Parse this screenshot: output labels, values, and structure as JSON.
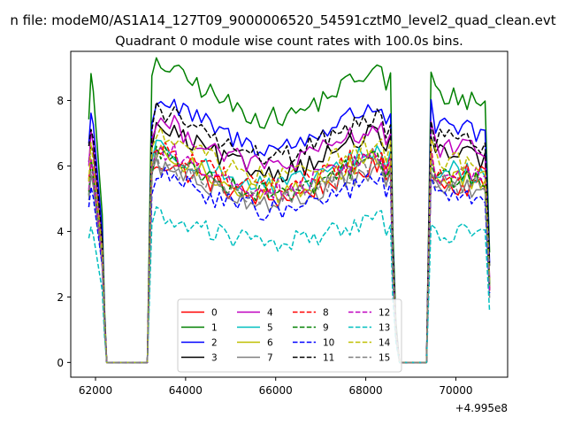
{
  "figure": {
    "suptitle": "n file: modeM0/AS1A14_127T09_9000006520_54591cztM0_level2_quad_clean.evt",
    "offset_label": "+4.995e8"
  },
  "chart_data": {
    "type": "line",
    "title": "Quadrant 0 module wise count rates with 100.0s bins.",
    "xlabel": "",
    "ylabel": "",
    "x_offset": 499500000,
    "xlim": [
      61450,
      71150
    ],
    "ylim": [
      -0.45,
      9.5
    ],
    "xticks": [
      62000,
      64000,
      66000,
      68000,
      70000
    ],
    "xtick_labels": [
      "62000",
      "64000",
      "66000",
      "68000",
      "70000"
    ],
    "yticks": [
      0,
      2,
      4,
      6,
      8
    ],
    "ytick_labels": [
      "0",
      "2",
      "4",
      "6",
      "8"
    ],
    "grid": false,
    "legend_position": "lower-center",
    "legend_columns": 4,
    "segments": [
      {
        "start": 61850,
        "end": 62150
      },
      {
        "start": 63250,
        "end": 68550
      },
      {
        "start": 69450,
        "end": 70750
      }
    ],
    "gaps": [
      {
        "from": 62250,
        "to": 63150
      },
      {
        "from": 68750,
        "to": 69350
      }
    ],
    "bin_seconds": 100,
    "series": [
      {
        "name": "0",
        "color": "#ff0000",
        "dash": "solid",
        "level": 5.5
      },
      {
        "name": "1",
        "color": "#008000",
        "dash": "solid",
        "level": 8.2
      },
      {
        "name": "2",
        "color": "#0000ff",
        "dash": "solid",
        "level": 7.2
      },
      {
        "name": "3",
        "color": "#000000",
        "dash": "solid",
        "level": 6.4
      },
      {
        "name": "4",
        "color": "#bf00bf",
        "dash": "solid",
        "level": 6.6
      },
      {
        "name": "5",
        "color": "#00bfbf",
        "dash": "solid",
        "level": 5.9
      },
      {
        "name": "6",
        "color": "#bfbf00",
        "dash": "solid",
        "level": 5.7
      },
      {
        "name": "7",
        "color": "#808080",
        "dash": "solid",
        "level": 5.4
      },
      {
        "name": "8",
        "color": "#ff0000",
        "dash": "dashed",
        "level": 5.9
      },
      {
        "name": "9",
        "color": "#008000",
        "dash": "dashed",
        "level": 5.7
      },
      {
        "name": "10",
        "color": "#0000ff",
        "dash": "dashed",
        "level": 5.1
      },
      {
        "name": "11",
        "color": "#000000",
        "dash": "dashed",
        "level": 6.9
      },
      {
        "name": "12",
        "color": "#bf00bf",
        "dash": "dashed",
        "level": 5.8
      },
      {
        "name": "13",
        "color": "#00bfbf",
        "dash": "dashed",
        "level": 4.0
      },
      {
        "name": "14",
        "color": "#bfbf00",
        "dash": "dashed",
        "level": 6.2
      },
      {
        "name": "15",
        "color": "#808080",
        "dash": "dashed",
        "level": 5.5
      }
    ]
  }
}
